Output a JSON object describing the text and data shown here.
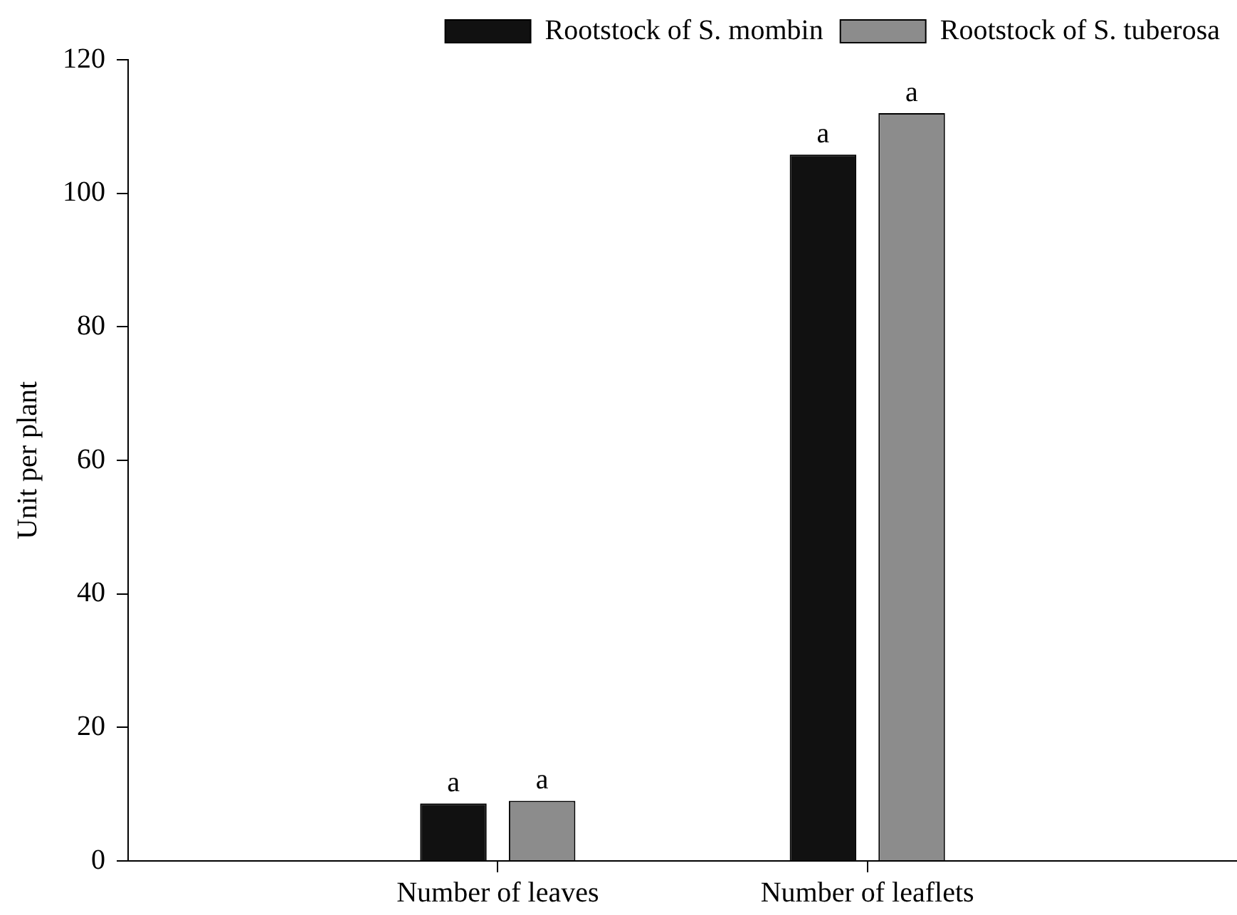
{
  "chart_data": {
    "type": "bar",
    "ylabel": "Unit per plant",
    "categories": [
      "Number of leaves",
      "Number of leaflets"
    ],
    "series": [
      {
        "name": "Rootstock of S. mombin",
        "color": "#111111",
        "values": [
          8.6,
          105.8
        ],
        "value_labels": [
          "a",
          "a"
        ]
      },
      {
        "name": "Rootstock of S. tuberosa",
        "color": "#8c8c8c",
        "values": [
          9.0,
          112.0
        ],
        "value_labels": [
          "a",
          "a"
        ]
      }
    ],
    "ylim": [
      0,
      120
    ],
    "yticks": [
      0,
      20,
      40,
      60,
      80,
      100,
      120
    ],
    "grid": false,
    "legend": "top"
  }
}
